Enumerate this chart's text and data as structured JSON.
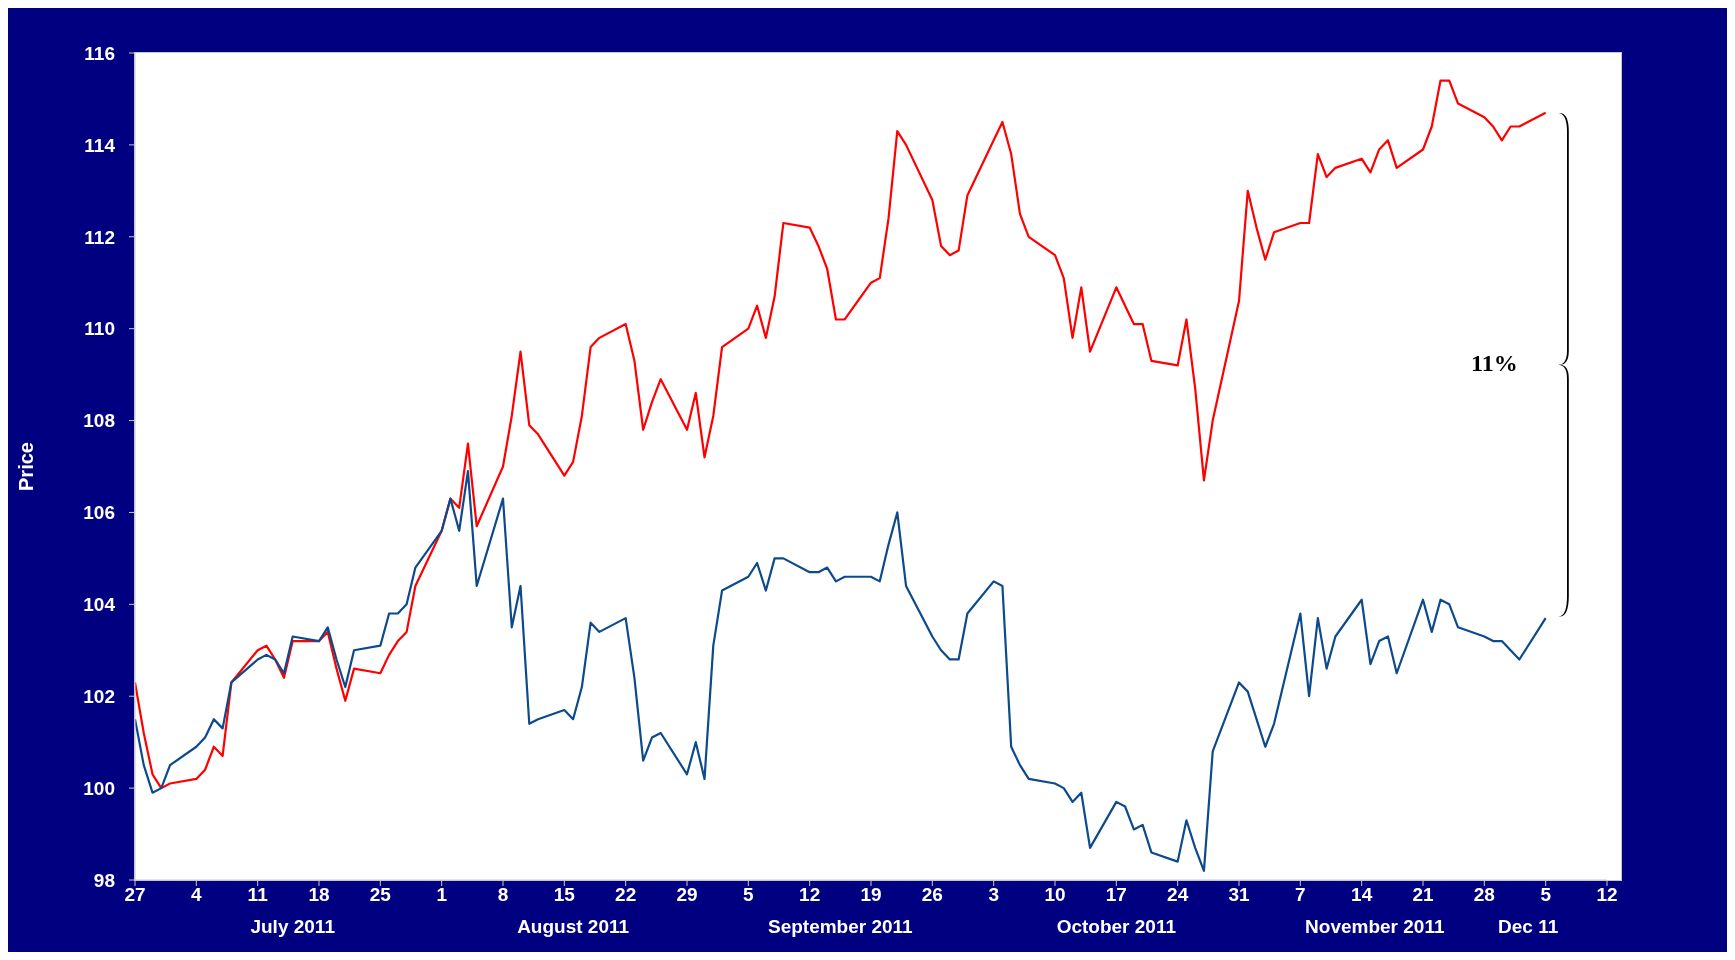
{
  "chart_data": {
    "type": "line",
    "ylabel": "Price",
    "x": [
      "2011-06-27",
      "2011-06-28",
      "2011-06-29",
      "2011-06-30",
      "2011-07-01",
      "2011-07-04",
      "2011-07-05",
      "2011-07-06",
      "2011-07-07",
      "2011-07-08",
      "2011-07-11",
      "2011-07-12",
      "2011-07-13",
      "2011-07-14",
      "2011-07-15",
      "2011-07-18",
      "2011-07-19",
      "2011-07-20",
      "2011-07-21",
      "2011-07-22",
      "2011-07-25",
      "2011-07-26",
      "2011-07-27",
      "2011-07-28",
      "2011-07-29",
      "2011-08-01",
      "2011-08-02",
      "2011-08-03",
      "2011-08-04",
      "2011-08-05",
      "2011-08-08",
      "2011-08-09",
      "2011-08-10",
      "2011-08-11",
      "2011-08-12",
      "2011-08-15",
      "2011-08-16",
      "2011-08-17",
      "2011-08-18",
      "2011-08-19",
      "2011-08-22",
      "2011-08-23",
      "2011-08-24",
      "2011-08-25",
      "2011-08-26",
      "2011-08-29",
      "2011-08-30",
      "2011-08-31",
      "2011-09-01",
      "2011-09-02",
      "2011-09-05",
      "2011-09-06",
      "2011-09-07",
      "2011-09-08",
      "2011-09-09",
      "2011-09-12",
      "2011-09-13",
      "2011-09-14",
      "2011-09-15",
      "2011-09-16",
      "2011-09-19",
      "2011-09-20",
      "2011-09-21",
      "2011-09-22",
      "2011-09-23",
      "2011-09-26",
      "2011-09-27",
      "2011-09-28",
      "2011-09-29",
      "2011-09-30",
      "2011-10-03",
      "2011-10-04",
      "2011-10-05",
      "2011-10-06",
      "2011-10-07",
      "2011-10-10",
      "2011-10-11",
      "2011-10-12",
      "2011-10-13",
      "2011-10-14",
      "2011-10-17",
      "2011-10-18",
      "2011-10-19",
      "2011-10-20",
      "2011-10-21",
      "2011-10-24",
      "2011-10-25",
      "2011-10-26",
      "2011-10-27",
      "2011-10-28",
      "2011-10-31",
      "2011-11-01",
      "2011-11-02",
      "2011-11-03",
      "2011-11-04",
      "2011-11-07",
      "2011-11-08",
      "2011-11-09",
      "2011-11-10",
      "2011-11-11",
      "2011-11-14",
      "2011-11-15",
      "2011-11-16",
      "2011-11-17",
      "2011-11-18",
      "2011-11-21",
      "2011-11-22",
      "2011-11-23",
      "2011-11-24",
      "2011-11-25",
      "2011-11-28",
      "2011-11-29",
      "2011-11-30",
      "2011-12-01",
      "2011-12-02",
      "2011-12-05"
    ],
    "series": [
      {
        "color": "#ff0000",
        "values": [
          102.3,
          101.2,
          100.3,
          100.0,
          100.1,
          100.2,
          100.4,
          100.9,
          100.7,
          102.3,
          103.0,
          103.1,
          102.8,
          102.4,
          103.2,
          103.2,
          103.4,
          102.6,
          101.9,
          102.6,
          102.5,
          102.9,
          103.2,
          103.4,
          104.4,
          105.6,
          106.3,
          106.1,
          107.5,
          105.7,
          107.0,
          108.1,
          109.5,
          107.9,
          107.7,
          106.8,
          107.1,
          108.1,
          109.6,
          109.8,
          110.1,
          109.3,
          107.8,
          108.4,
          108.9,
          107.8,
          108.6,
          107.2,
          108.1,
          109.6,
          110.0,
          110.5,
          109.8,
          110.7,
          112.3,
          112.2,
          111.8,
          111.3,
          110.2,
          110.2,
          111.0,
          111.1,
          112.4,
          114.3,
          114.0,
          112.8,
          111.8,
          111.6,
          111.7,
          112.9,
          114.1,
          114.5,
          113.8,
          112.5,
          112.0,
          111.6,
          111.1,
          109.8,
          110.9,
          109.5,
          110.9,
          110.5,
          110.1,
          110.1,
          109.3,
          109.2,
          110.2,
          108.7,
          106.7,
          108.0,
          110.6,
          113.0,
          112.2,
          111.5,
          112.1,
          112.3,
          112.3,
          113.8,
          113.3,
          113.5,
          113.7,
          113.4,
          113.9,
          114.1,
          113.5,
          113.9,
          114.4,
          115.4,
          115.4,
          114.9,
          114.6,
          114.4,
          114.1,
          114.4,
          114.4,
          114.7
        ]
      },
      {
        "color": "#0d4a8c",
        "values": [
          101.5,
          100.5,
          99.9,
          100.0,
          100.5,
          100.9,
          101.1,
          101.5,
          101.3,
          102.3,
          102.8,
          102.9,
          102.8,
          102.5,
          103.3,
          103.2,
          103.5,
          102.8,
          102.2,
          103.0,
          103.1,
          103.8,
          103.8,
          104.0,
          104.8,
          105.6,
          106.3,
          105.6,
          106.9,
          104.4,
          106.3,
          103.5,
          104.4,
          101.4,
          101.5,
          101.7,
          101.5,
          102.2,
          103.6,
          103.4,
          103.7,
          102.4,
          100.6,
          101.1,
          101.2,
          100.3,
          101.0,
          100.2,
          103.1,
          104.3,
          104.6,
          104.9,
          104.3,
          105.0,
          105.0,
          104.7,
          104.7,
          104.8,
          104.5,
          104.6,
          104.6,
          104.5,
          105.3,
          106.0,
          104.4,
          103.3,
          103.0,
          102.8,
          102.8,
          103.8,
          104.5,
          104.4,
          100.9,
          100.5,
          100.2,
          100.1,
          100.0,
          99.7,
          99.9,
          98.7,
          99.7,
          99.6,
          99.1,
          99.2,
          98.6,
          98.4,
          99.3,
          98.7,
          98.2,
          100.8,
          102.3,
          102.1,
          101.5,
          100.9,
          101.4,
          103.8,
          102.0,
          103.7,
          102.6,
          103.3,
          104.1,
          102.7,
          103.2,
          103.3,
          102.5,
          104.1,
          103.4,
          104.1,
          104.0,
          103.5,
          103.3,
          103.2,
          103.2,
          103.0,
          102.8,
          103.7
        ]
      }
    ],
    "xlim": [
      "2011-06-27",
      "2011-12-12"
    ],
    "xticks": [
      {
        "value": "2011-06-27",
        "label": "27"
      },
      {
        "value": "2011-07-04",
        "label": "4"
      },
      {
        "value": "2011-07-11",
        "label": "11"
      },
      {
        "value": "2011-07-18",
        "label": "18"
      },
      {
        "value": "2011-07-25",
        "label": "25"
      },
      {
        "value": "2011-08-01",
        "label": "1"
      },
      {
        "value": "2011-08-08",
        "label": "8"
      },
      {
        "value": "2011-08-15",
        "label": "15"
      },
      {
        "value": "2011-08-22",
        "label": "22"
      },
      {
        "value": "2011-08-29",
        "label": "29"
      },
      {
        "value": "2011-09-05",
        "label": "5"
      },
      {
        "value": "2011-09-12",
        "label": "12"
      },
      {
        "value": "2011-09-19",
        "label": "19"
      },
      {
        "value": "2011-09-26",
        "label": "26"
      },
      {
        "value": "2011-10-03",
        "label": "3"
      },
      {
        "value": "2011-10-10",
        "label": "10"
      },
      {
        "value": "2011-10-17",
        "label": "17"
      },
      {
        "value": "2011-10-24",
        "label": "24"
      },
      {
        "value": "2011-10-31",
        "label": "31"
      },
      {
        "value": "2011-11-07",
        "label": "7"
      },
      {
        "value": "2011-11-14",
        "label": "14"
      },
      {
        "value": "2011-11-21",
        "label": "21"
      },
      {
        "value": "2011-11-28",
        "label": "28"
      },
      {
        "value": "2011-12-05",
        "label": "5"
      },
      {
        "value": "2011-12-12",
        "label": "12"
      }
    ],
    "ylim": [
      98,
      116
    ],
    "yticks": [
      98,
      100,
      102,
      104,
      106,
      108,
      110,
      112,
      114,
      116
    ],
    "line_style": "solid",
    "annotations": [
      "July 2011",
      "August 2011",
      "September 2011",
      "October 2011",
      "November 2011",
      "Dec 11",
      "11%"
    ]
  }
}
